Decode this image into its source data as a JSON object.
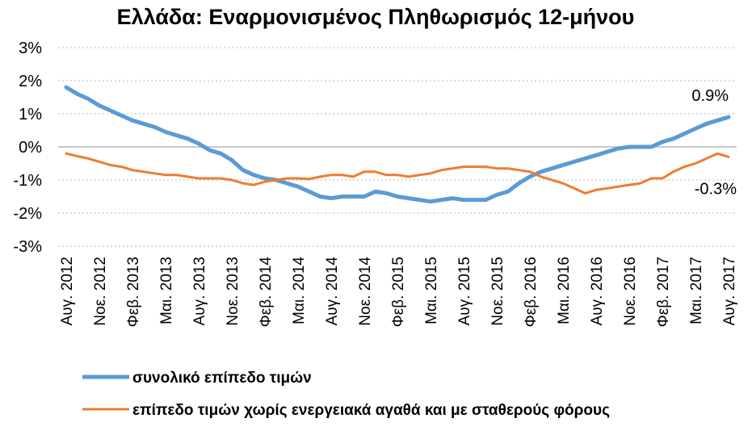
{
  "chart_data": {
    "type": "line",
    "title": "Ελλάδα: Εναρμονισμένος Πληθωρισμός 12-μήνου",
    "categories": [
      "Αυγ. 2012",
      null,
      null,
      "Νοε. 2012",
      null,
      null,
      "Φεβ. 2013",
      null,
      null,
      "Μαι. 2013",
      null,
      null,
      "Αυγ. 2013",
      null,
      null,
      "Νοε. 2013",
      null,
      null,
      "Φεβ. 2014",
      null,
      null,
      "Μαι. 2014",
      null,
      null,
      "Αυγ. 2014",
      null,
      null,
      "Νοε. 2014",
      null,
      null,
      "Φεβ. 2015",
      null,
      null,
      "Μαι. 2015",
      null,
      null,
      "Αυγ. 2015",
      null,
      null,
      "Νοε. 2015",
      null,
      null,
      "Φεβ. 2016",
      null,
      null,
      "Μαι. 2016",
      null,
      null,
      "Αυγ. 2016",
      null,
      null,
      "Νοε. 2016",
      null,
      null,
      "Φεβ. 2017",
      null,
      null,
      "Μαι. 2017",
      null,
      null,
      "Αυγ. 2017"
    ],
    "series": [
      {
        "name": "συνολικό επίπεδο τιμών",
        "color": "#5b9bd5",
        "values": [
          1.8,
          1.6,
          1.45,
          1.25,
          1.1,
          0.95,
          0.8,
          0.7,
          0.6,
          0.45,
          0.35,
          0.25,
          0.1,
          -0.1,
          -0.2,
          -0.4,
          -0.7,
          -0.85,
          -0.95,
          -1.0,
          -1.1,
          -1.2,
          -1.35,
          -1.5,
          -1.55,
          -1.5,
          -1.5,
          -1.5,
          -1.35,
          -1.4,
          -1.5,
          -1.55,
          -1.6,
          -1.65,
          -1.6,
          -1.55,
          -1.6,
          -1.6,
          -1.6,
          -1.45,
          -1.35,
          -1.1,
          -0.9,
          -0.75,
          -0.65,
          -0.55,
          -0.45,
          -0.35,
          -0.25,
          -0.15,
          -0.05,
          0.0,
          0.0,
          0.0,
          0.15,
          0.25,
          0.4,
          0.55,
          0.7,
          0.8,
          0.9
        ],
        "value_labels": [
          null,
          null,
          null,
          null,
          null,
          null,
          null,
          null,
          null,
          null,
          null,
          null,
          null,
          null,
          null,
          null,
          null,
          null,
          null,
          null,
          null,
          null,
          null,
          null,
          null,
          null,
          null,
          null,
          null,
          null,
          null,
          null,
          null,
          null,
          null,
          null,
          null,
          null,
          null,
          null,
          null,
          null,
          null,
          null,
          null,
          null,
          null,
          null,
          null,
          null,
          null,
          null,
          null,
          null,
          null,
          null,
          null,
          null,
          null,
          null,
          "0.9%"
        ]
      },
      {
        "name": "επίπεδο τιμών χωρίς ενεργειακά αγαθά και με σταθερούς φόρους",
        "color": "#ed7d31",
        "values": [
          -0.2,
          -0.28,
          -0.35,
          -0.45,
          -0.55,
          -0.6,
          -0.7,
          -0.75,
          -0.8,
          -0.85,
          -0.85,
          -0.9,
          -0.95,
          -0.95,
          -0.95,
          -1.0,
          -1.1,
          -1.15,
          -1.05,
          -1.0,
          -0.95,
          -0.95,
          -0.97,
          -0.9,
          -0.85,
          -0.85,
          -0.9,
          -0.75,
          -0.75,
          -0.85,
          -0.85,
          -0.9,
          -0.85,
          -0.8,
          -0.7,
          -0.65,
          -0.6,
          -0.6,
          -0.6,
          -0.65,
          -0.65,
          -0.7,
          -0.75,
          -0.9,
          -1.0,
          -1.1,
          -1.25,
          -1.4,
          -1.3,
          -1.25,
          -1.2,
          -1.15,
          -1.1,
          -0.95,
          -0.95,
          -0.75,
          -0.6,
          -0.5,
          -0.35,
          -0.2,
          -0.3
        ],
        "value_labels": [
          null,
          null,
          null,
          null,
          null,
          null,
          null,
          null,
          null,
          null,
          null,
          null,
          null,
          null,
          null,
          null,
          null,
          null,
          null,
          null,
          null,
          null,
          null,
          null,
          null,
          null,
          null,
          null,
          null,
          null,
          null,
          null,
          null,
          null,
          null,
          null,
          null,
          null,
          null,
          null,
          null,
          null,
          null,
          null,
          null,
          null,
          null,
          null,
          null,
          null,
          null,
          null,
          null,
          null,
          null,
          null,
          null,
          null,
          null,
          null,
          "-0.3%"
        ]
      }
    ],
    "ylim": [
      -3,
      3
    ],
    "yticks": [
      {
        "value": -3,
        "label": "-3%"
      },
      {
        "value": -2,
        "label": "-2%"
      },
      {
        "value": -1,
        "label": "-1%"
      },
      {
        "value": 0,
        "label": "0%"
      },
      {
        "value": 1,
        "label": "1%"
      },
      {
        "value": 2,
        "label": "2%"
      },
      {
        "value": 3,
        "label": "3%"
      }
    ],
    "grid": true
  }
}
